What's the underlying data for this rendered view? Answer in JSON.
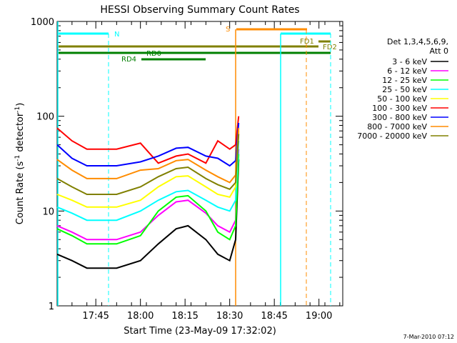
{
  "chart_data": {
    "type": "line",
    "title": "HESSI Observing Summary Count Rates",
    "xlabel": "Start Time (23-May-09 17:32:02)",
    "ylabel_main": "Count Rate (s",
    "ylabel_sup1": "-1",
    "ylabel_mid": " detector",
    "ylabel_sup2": "-1",
    "ylabel_end": ")",
    "y_scale": "log",
    "ylim": [
      1,
      1000
    ],
    "xlim_minutes": [
      0,
      96
    ],
    "x_ticks": [
      {
        "minute": 13,
        "label": "17:45"
      },
      {
        "minute": 28,
        "label": "18:00"
      },
      {
        "minute": 43,
        "label": "18:15"
      },
      {
        "minute": 58,
        "label": "18:30"
      },
      {
        "minute": 73,
        "label": "18:45"
      },
      {
        "minute": 88,
        "label": "19:00"
      }
    ],
    "y_ticks": [
      {
        "value": 1,
        "label": "1"
      },
      {
        "value": 10,
        "label": "10"
      },
      {
        "value": 100,
        "label": "100"
      },
      {
        "value": 1000,
        "label": "1000"
      }
    ],
    "legend_header": [
      "Det 1,3,4,5,6,9,",
      "Att 0"
    ],
    "legend_placement": "right",
    "series": [
      {
        "name": "3 - 6 keV",
        "color": "#000000",
        "t": [
          0,
          5,
          10,
          20,
          28,
          34,
          40,
          44,
          50,
          54,
          58,
          60,
          61
        ],
        "values": [
          3.5,
          3.0,
          2.5,
          2.5,
          3.0,
          4.5,
          6.5,
          7.0,
          5.0,
          3.5,
          3.0,
          5.0,
          35
        ]
      },
      {
        "name": "6 - 12 keV",
        "color": "#ff00ff",
        "t": [
          0,
          5,
          10,
          20,
          28,
          34,
          40,
          44,
          50,
          54,
          58,
          60,
          61
        ],
        "values": [
          7.0,
          6.0,
          5.0,
          5.0,
          6.0,
          9.0,
          12.5,
          13.0,
          9.5,
          7.0,
          6.0,
          8.0,
          45
        ]
      },
      {
        "name": "12 - 25 keV",
        "color": "#00ff00",
        "t": [
          0,
          5,
          10,
          20,
          28,
          34,
          40,
          44,
          50,
          54,
          58,
          60,
          61
        ],
        "values": [
          6.5,
          5.5,
          4.5,
          4.5,
          5.5,
          10.0,
          14.0,
          14.5,
          10.0,
          6.0,
          5.0,
          7.0,
          40
        ]
      },
      {
        "name": "25 - 50 keV",
        "color": "#00ffff",
        "t": [
          0,
          5,
          10,
          20,
          28,
          34,
          40,
          44,
          50,
          54,
          58,
          60,
          61
        ],
        "values": [
          11.0,
          9.5,
          8.0,
          8.0,
          10.0,
          13.0,
          16.0,
          16.5,
          13.0,
          11.0,
          10.0,
          13.0,
          55
        ]
      },
      {
        "name": "50 - 100 keV",
        "color": "#ffff00",
        "t": [
          0,
          5,
          10,
          20,
          28,
          34,
          40,
          44,
          50,
          54,
          58,
          60,
          61
        ],
        "values": [
          15.0,
          13.0,
          11.0,
          11.0,
          13.0,
          18.0,
          23.0,
          23.5,
          18.0,
          15.0,
          14.0,
          18.0,
          70
        ]
      },
      {
        "name": "100 - 300 keV",
        "color": "#ff0000",
        "t": [
          0,
          5,
          10,
          20,
          28,
          34,
          40,
          44,
          50,
          54,
          58,
          60,
          61
        ],
        "values": [
          75,
          55,
          45,
          45,
          52,
          32,
          38,
          40,
          32,
          55,
          45,
          50,
          100
        ]
      },
      {
        "name": "300 - 800 keV",
        "color": "#0000ff",
        "t": [
          0,
          5,
          10,
          20,
          28,
          34,
          40,
          44,
          50,
          54,
          58,
          60,
          61
        ],
        "values": [
          50,
          36,
          30,
          30,
          33,
          38,
          46,
          47,
          38,
          36,
          30,
          34,
          85
        ]
      },
      {
        "name": "800 - 7000 keV",
        "color": "#ff8c00",
        "t": [
          0,
          5,
          10,
          20,
          28,
          34,
          40,
          44,
          50,
          54,
          58,
          60,
          61
        ],
        "values": [
          35,
          27,
          22,
          22,
          27,
          28,
          34,
          35,
          27,
          23,
          20,
          24,
          75
        ]
      },
      {
        "name": "7000 - 20000 keV",
        "color": "#808000",
        "t": [
          0,
          5,
          10,
          20,
          28,
          34,
          40,
          44,
          50,
          54,
          58,
          60,
          61
        ],
        "values": [
          22,
          18,
          15,
          15,
          18,
          23,
          28,
          29,
          22,
          19,
          17,
          20,
          65
        ]
      }
    ],
    "annotations": [
      {
        "label": "N",
        "color": "#00ffff"
      },
      {
        "label": "S",
        "color": "#ff8c00"
      },
      {
        "label": "FD1",
        "color": "#808000"
      },
      {
        "label": "FD2",
        "color": "#808000"
      },
      {
        "label": "RD0",
        "color": "#008000"
      },
      {
        "label": "RD4",
        "color": "#008000"
      }
    ]
  },
  "footer": {
    "date_stamp": "7-Mar-2010 07:12"
  }
}
